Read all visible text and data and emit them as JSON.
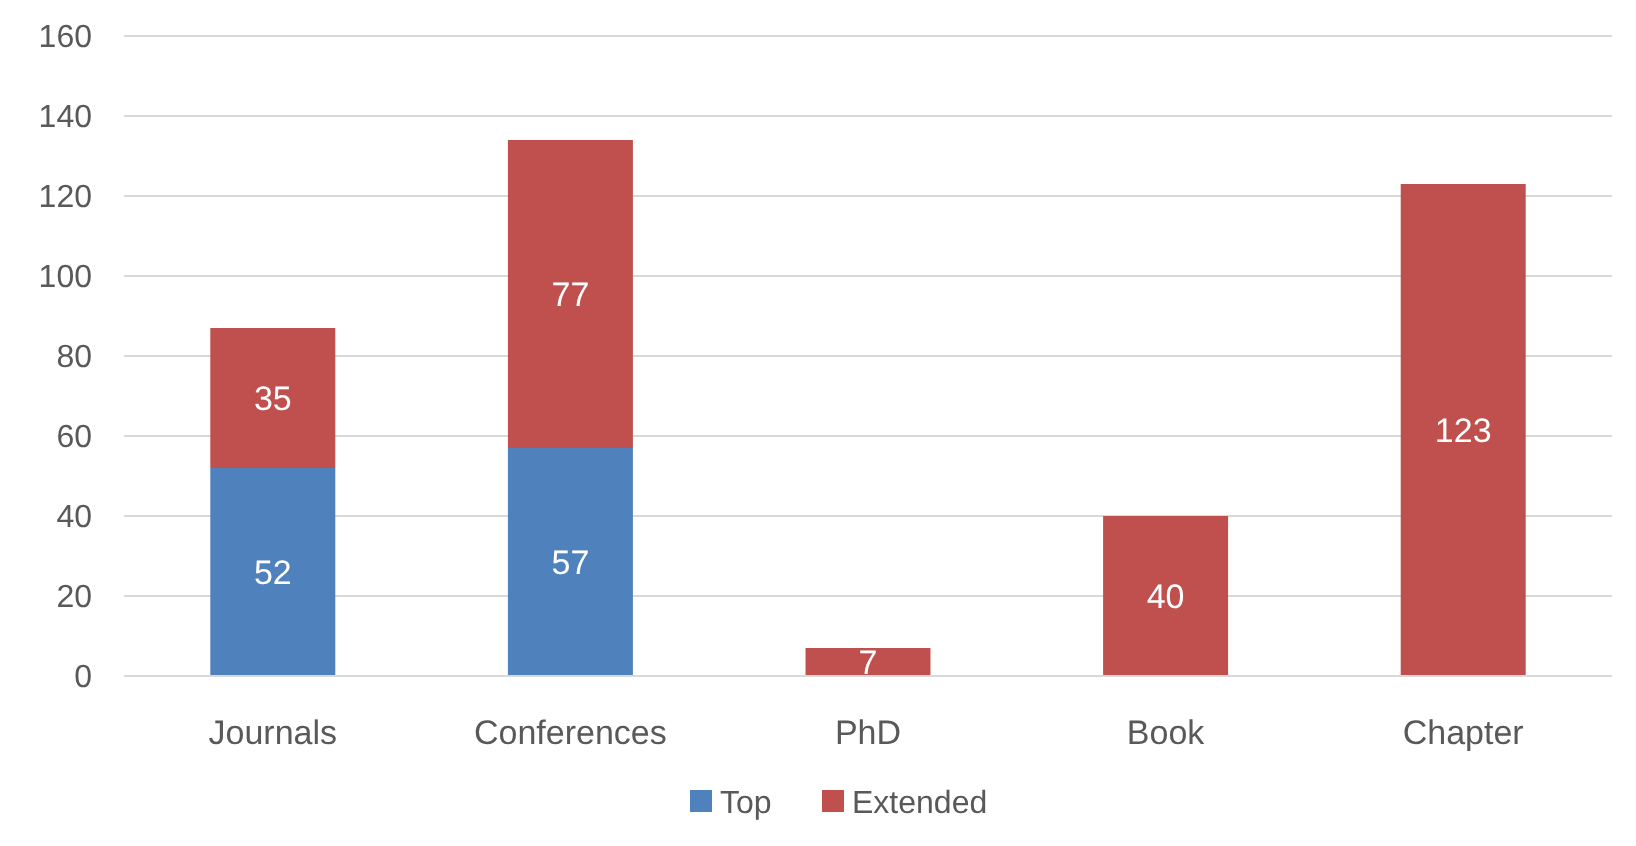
{
  "chart_data": {
    "type": "bar",
    "stacked": true,
    "categories": [
      "Journals",
      "Conferences",
      "PhD",
      "Book",
      "Chapter"
    ],
    "series": [
      {
        "name": "Top",
        "color": "#4f81bd",
        "values": [
          52,
          57,
          0,
          0,
          0
        ],
        "value_labels": [
          "52",
          "57",
          null,
          null,
          null
        ]
      },
      {
        "name": "Extended",
        "color": "#c0504d",
        "values": [
          35,
          77,
          7,
          40,
          123
        ],
        "value_labels": [
          "35",
          "77",
          "7",
          "40",
          "123"
        ]
      }
    ],
    "ylim": [
      0,
      160
    ],
    "yticks": [
      0,
      20,
      40,
      60,
      80,
      100,
      120,
      140,
      160
    ],
    "grid": "y",
    "legend": "bottom"
  }
}
